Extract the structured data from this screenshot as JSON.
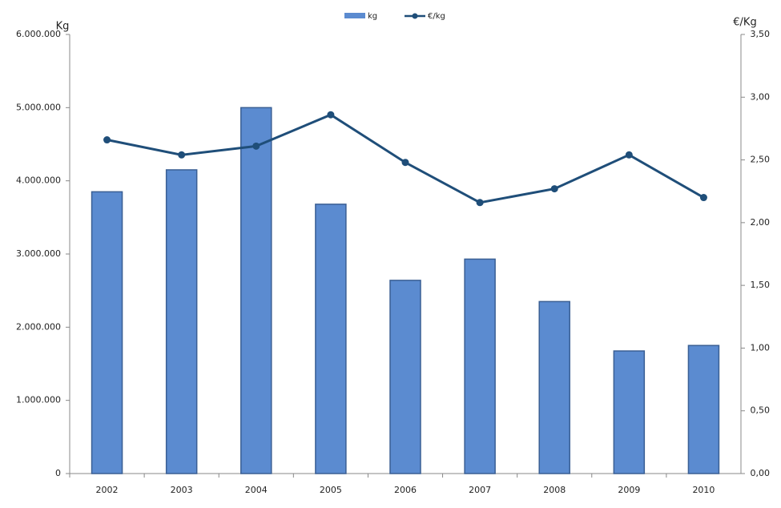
{
  "chart_data": {
    "type": "bar-line",
    "y_label": "Kg",
    "y2_label": "€/Kg",
    "categories": [
      "2002",
      "2003",
      "2004",
      "2005",
      "2006",
      "2007",
      "2008",
      "2009",
      "2010"
    ],
    "series": [
      {
        "name": "kg",
        "type": "bar",
        "color": "#5b8bd0",
        "values": [
          3850000,
          4150000,
          5000000,
          3680000,
          2640000,
          2930000,
          2350000,
          1675000,
          1750000
        ]
      },
      {
        "name": "€/kg",
        "type": "line",
        "axis": "y2",
        "color": "#1f4e79",
        "values": [
          2.66,
          2.54,
          2.61,
          2.86,
          2.48,
          2.16,
          2.27,
          2.54,
          2.2
        ]
      }
    ],
    "ylim": [
      0,
      6000000
    ],
    "yticks": [
      0,
      {
        "value": 1000000,
        "label": "1.000.000"
      },
      {
        "value": 2000000,
        "label": "2.000.000"
      },
      {
        "value": 3000000,
        "label": "3.000.000"
      },
      {
        "value": 4000000,
        "label": "4.000.000"
      },
      {
        "value": 5000000,
        "label": "5.000.000"
      },
      {
        "value": 6000000,
        "label": "6.000.000"
      }
    ],
    "y2lim": [
      0,
      3.5
    ],
    "y2ticks": [
      {
        "value": 0,
        "label": "0,00"
      },
      {
        "value": 0.5,
        "label": "0,50"
      },
      {
        "value": 1,
        "label": "1,00"
      },
      {
        "value": 1.5,
        "label": "1,50"
      },
      {
        "value": 2,
        "label": "2,00"
      },
      {
        "value": 2.5,
        "label": "2,50"
      },
      {
        "value": 3,
        "label": "3,00"
      },
      {
        "value": 3.5,
        "label": "3,50"
      }
    ],
    "grid": false,
    "legend": "top"
  }
}
